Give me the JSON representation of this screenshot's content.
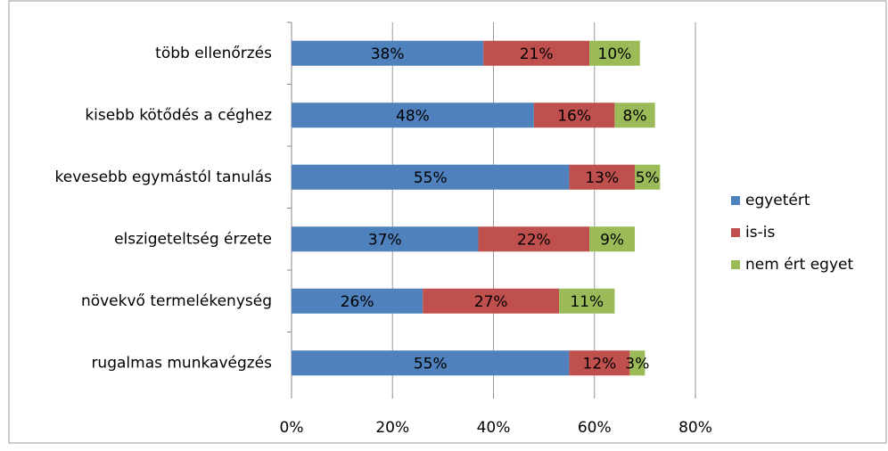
{
  "chart_data": {
    "type": "stacked-bar-horizontal",
    "categories": [
      "több ellenőrzés",
      "kisebb kötődés a céghez",
      "kevesebb egymástól tanulás",
      "elszigeteltség érzete",
      "növekvő termelékenység",
      "rugalmas munkavégzés"
    ],
    "series": [
      {
        "name": "egyetért",
        "color": "#4f81bd",
        "values": [
          38,
          48,
          55,
          37,
          26,
          55
        ],
        "value_labels": [
          "38%",
          "48%",
          "55%",
          "37%",
          "26%",
          "55%"
        ]
      },
      {
        "name": "is-is",
        "color": "#c0504d",
        "values": [
          21,
          16,
          13,
          22,
          27,
          12
        ],
        "value_labels": [
          "21%",
          "16%",
          "13%",
          "22%",
          "27%",
          "12%"
        ]
      },
      {
        "name": "nem ért egyet",
        "color": "#9bbb59",
        "values": [
          10,
          8,
          5,
          9,
          11,
          3
        ],
        "value_labels": [
          "10%",
          "8%",
          "5%",
          "9%",
          "11%",
          "3%"
        ]
      }
    ],
    "xlim": [
      0,
      80
    ],
    "xticks": [
      {
        "value": 0,
        "label": "0%"
      },
      {
        "value": 20,
        "label": "20%"
      },
      {
        "value": 40,
        "label": "40%"
      },
      {
        "value": 60,
        "label": "60%"
      },
      {
        "value": 80,
        "label": "80%"
      }
    ],
    "grid": true,
    "legend": "right"
  }
}
